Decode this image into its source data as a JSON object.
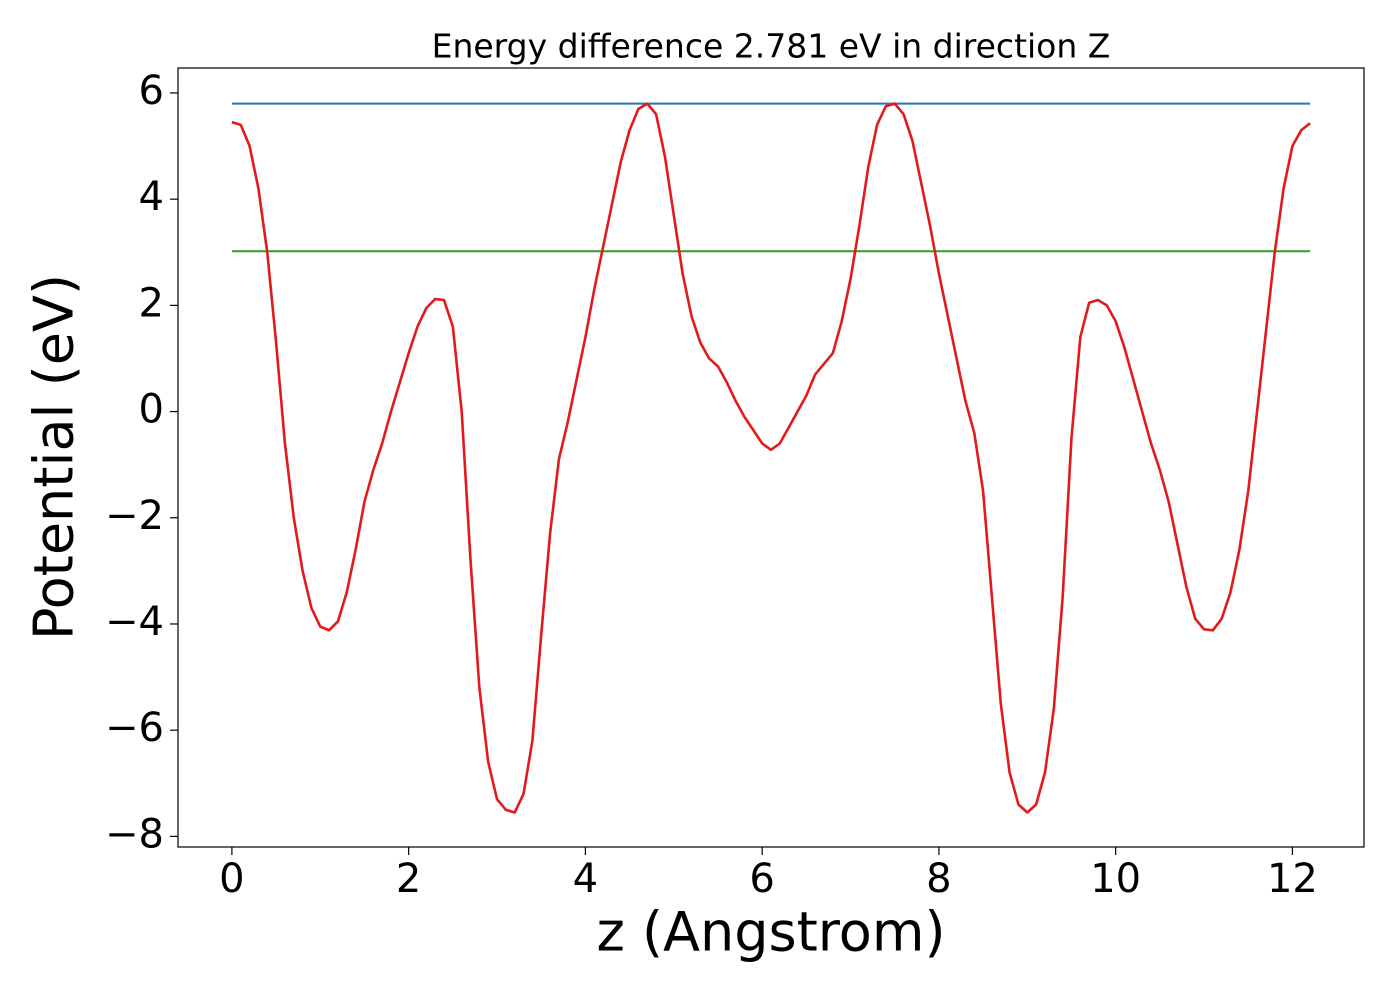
{
  "chart_data": {
    "type": "line",
    "title": "Energy difference 2.781 eV in direction Z",
    "xlabel": "z (Angstrom)",
    "ylabel": "Potential (eV)",
    "xlim": [
      -0.61,
      12.81
    ],
    "ylim": [
      -8.2,
      6.47
    ],
    "xticks": [
      0,
      2,
      4,
      6,
      8,
      10,
      12
    ],
    "yticks": [
      {
        "value": -8,
        "label": "−8"
      },
      {
        "value": -6,
        "label": "−6"
      },
      {
        "value": -4,
        "label": "−4"
      },
      {
        "value": -2,
        "label": "−2"
      },
      0,
      2,
      4,
      6
    ],
    "grid": false,
    "series": [
      {
        "color": "#1f77b4",
        "x": [
          0,
          12.2
        ],
        "values": [
          5.8,
          5.8
        ]
      },
      {
        "color": "#2ca02c",
        "x": [
          0,
          12.2
        ],
        "values": [
          3.02,
          3.02
        ]
      },
      {
        "color": "#e31a1c",
        "x": [
          0,
          0.1,
          0.2,
          0.3,
          0.4,
          0.5,
          0.6,
          0.7,
          0.8,
          0.9,
          1.0,
          1.1,
          1.2,
          1.3,
          1.4,
          1.5,
          1.6,
          1.7,
          1.8,
          1.9,
          2.0,
          2.1,
          2.2,
          2.3,
          2.4,
          2.5,
          2.6,
          2.7,
          2.8,
          2.9,
          3.0,
          3.1,
          3.2,
          3.3,
          3.4,
          3.5,
          3.6,
          3.7,
          3.8,
          3.9,
          4.0,
          4.1,
          4.2,
          4.3,
          4.4,
          4.5,
          4.6,
          4.7,
          4.8,
          4.9,
          5.0,
          5.1,
          5.2,
          5.3,
          5.4,
          5.5,
          5.6,
          5.7,
          5.8,
          5.9,
          6.0,
          6.1,
          6.2,
          6.3,
          6.4,
          6.5,
          6.6,
          6.7,
          6.8,
          6.9,
          7.0,
          7.1,
          7.2,
          7.3,
          7.4,
          7.5,
          7.6,
          7.7,
          7.8,
          7.9,
          8.0,
          8.1,
          8.2,
          8.3,
          8.4,
          8.5,
          8.6,
          8.7,
          8.8,
          8.9,
          9.0,
          9.1,
          9.2,
          9.3,
          9.4,
          9.5,
          9.6,
          9.7,
          9.8,
          9.9,
          10.0,
          10.1,
          10.2,
          10.3,
          10.4,
          10.5,
          10.6,
          10.7,
          10.8,
          10.9,
          11.0,
          11.1,
          11.2,
          11.3,
          11.4,
          11.5,
          11.6,
          11.7,
          11.8,
          11.9,
          12.0,
          12.1,
          12.2
        ],
        "values": [
          5.45,
          5.4,
          5.0,
          4.2,
          3.0,
          1.3,
          -0.6,
          -2.0,
          -3.0,
          -3.7,
          -4.05,
          -4.12,
          -3.95,
          -3.4,
          -2.6,
          -1.7,
          -1.1,
          -0.6,
          0.0,
          0.55,
          1.1,
          1.6,
          1.95,
          2.12,
          2.1,
          1.6,
          0.0,
          -2.8,
          -5.2,
          -6.6,
          -7.3,
          -7.5,
          -7.55,
          -7.2,
          -6.2,
          -4.2,
          -2.3,
          -0.9,
          -0.2,
          0.6,
          1.4,
          2.3,
          3.1,
          3.9,
          4.7,
          5.3,
          5.7,
          5.8,
          5.6,
          4.8,
          3.7,
          2.6,
          1.8,
          1.3,
          1.0,
          0.85,
          0.55,
          0.2,
          -0.1,
          -0.35,
          -0.6,
          -0.72,
          -0.6,
          -0.3,
          0.0,
          0.3,
          0.7,
          0.9,
          1.1,
          1.7,
          2.5,
          3.5,
          4.6,
          5.4,
          5.75,
          5.8,
          5.6,
          5.1,
          4.3,
          3.5,
          2.6,
          1.8,
          1.0,
          0.2,
          -0.4,
          -1.5,
          -3.5,
          -5.5,
          -6.8,
          -7.4,
          -7.55,
          -7.4,
          -6.8,
          -5.6,
          -3.5,
          -0.5,
          1.4,
          2.05,
          2.1,
          2.0,
          1.7,
          1.2,
          0.6,
          0.0,
          -0.6,
          -1.1,
          -1.7,
          -2.5,
          -3.3,
          -3.9,
          -4.1,
          -4.12,
          -3.9,
          -3.4,
          -2.6,
          -1.5,
          0.0,
          1.5,
          3.0,
          4.2,
          5.0,
          5.3,
          5.43
        ]
      }
    ]
  }
}
